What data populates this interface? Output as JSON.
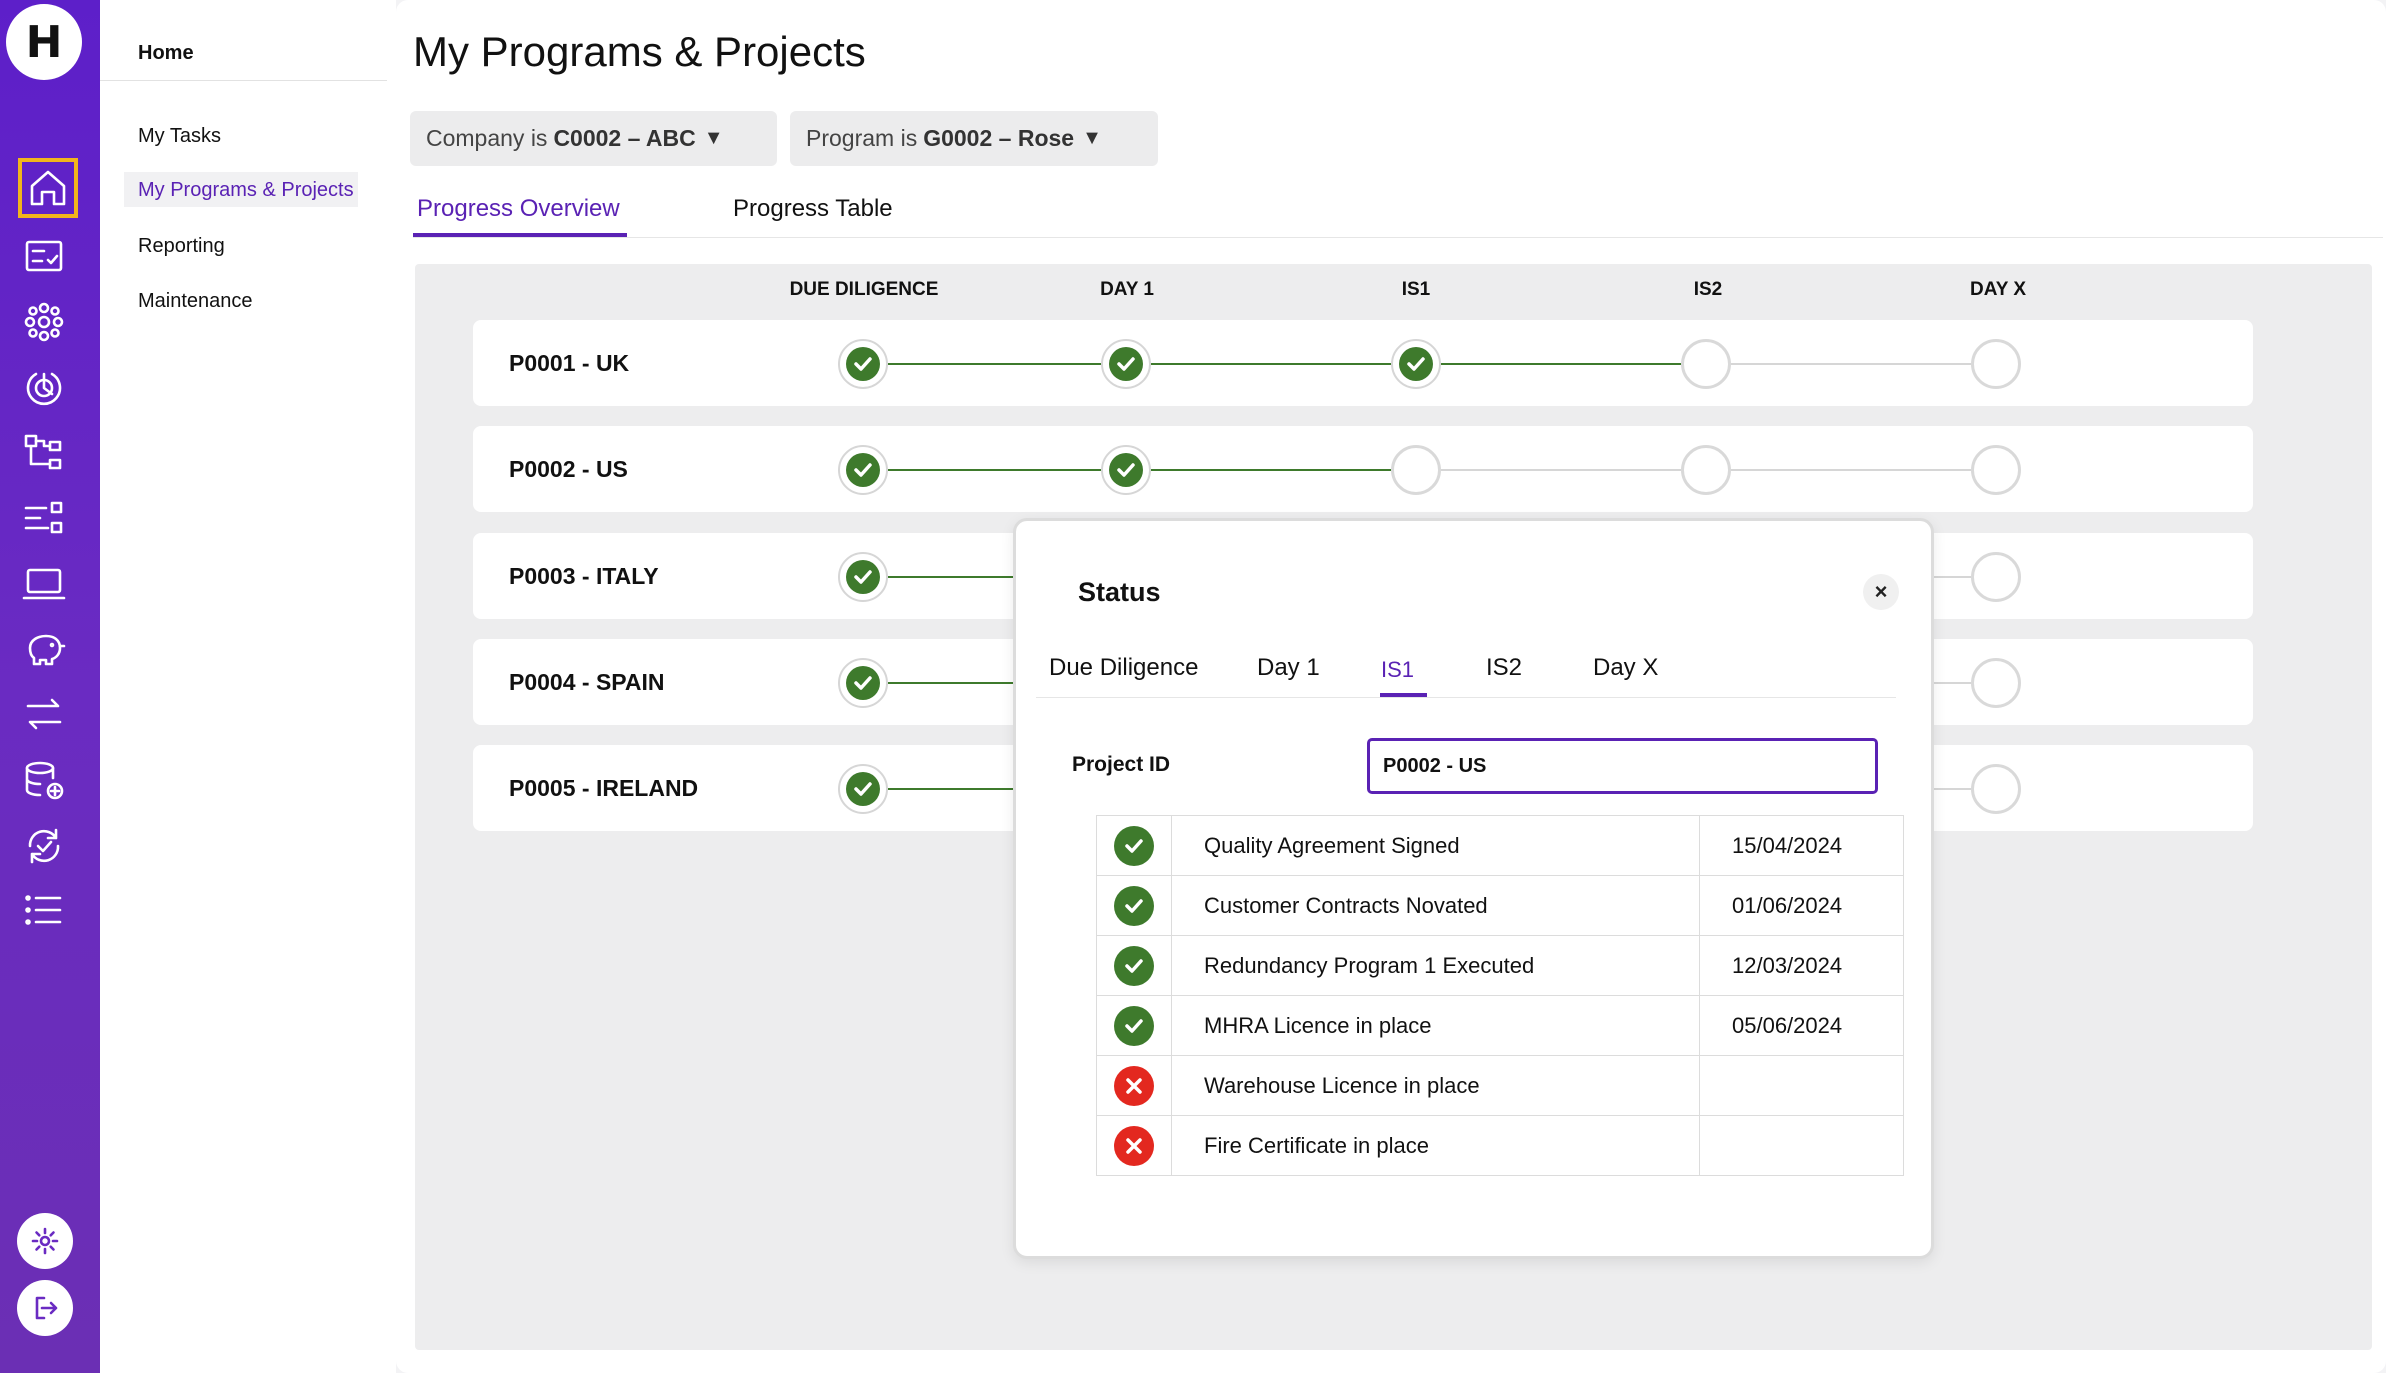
{
  "rail": {
    "logo": "H",
    "icons": [
      "home-icon",
      "tasks-icon",
      "network-icon",
      "progress-icon",
      "hierarchy-icon",
      "filter-list-icon",
      "laptop-icon",
      "piggy-bank-icon",
      "transfer-icon",
      "database-add-icon",
      "sync-check-icon",
      "list-icon"
    ],
    "bottom": [
      "settings-icon",
      "logout-icon"
    ]
  },
  "sidebar": {
    "home": "Home",
    "items": [
      {
        "label": "My Tasks"
      },
      {
        "label": "My Programs & Projects"
      },
      {
        "label": "Reporting"
      },
      {
        "label": "Maintenance"
      }
    ]
  },
  "page": {
    "title": "My Programs & Projects",
    "filters": {
      "company": {
        "prefix": "Company is",
        "value": "C0002 – ABC"
      },
      "program": {
        "prefix": "Program is",
        "value": "G0002 – Rose"
      }
    },
    "tabs": [
      "Progress Overview",
      "Progress Table"
    ],
    "active_tab": "Progress Overview"
  },
  "milestones": [
    "DUE DILIGENCE",
    "DAY 1",
    "IS1",
    "IS2",
    "DAY X"
  ],
  "projects": [
    {
      "name": "P0001 - UK",
      "done": 3
    },
    {
      "name": "P0002 - US",
      "done": 2
    },
    {
      "name": "P0003 - ITALY",
      "done": 1
    },
    {
      "name": "P0004 - SPAIN",
      "done": 1
    },
    {
      "name": "P0005 - IRELAND",
      "done": 1
    }
  ],
  "modal": {
    "title": "Status",
    "close": "×",
    "tabs": [
      "Due Diligence",
      "Day 1",
      "IS1",
      "IS2",
      "Day X"
    ],
    "active_tab": "IS1",
    "project_id_label": "Project ID",
    "project_id_value": "P0002 - US",
    "items": [
      {
        "status": "complete",
        "label": "Quality Agreement Signed",
        "date": "15/04/2024"
      },
      {
        "status": "complete",
        "label": "Customer Contracts Novated",
        "date": "01/06/2024"
      },
      {
        "status": "complete",
        "label": "Redundancy Program 1 Executed",
        "date": "12/03/2024"
      },
      {
        "status": "complete",
        "label": "MHRA Licence in place",
        "date": "05/06/2024"
      },
      {
        "status": "incomplete",
        "label": "Warehouse Licence in place",
        "date": ""
      },
      {
        "status": "incomplete",
        "label": "Fire Certificate in place",
        "date": ""
      }
    ]
  },
  "colors": {
    "brand": "#6a2bc2",
    "accent": "#5a22b4",
    "done": "#3e7a2c",
    "error": "#e3281f",
    "highlight": "#f2b51c"
  }
}
